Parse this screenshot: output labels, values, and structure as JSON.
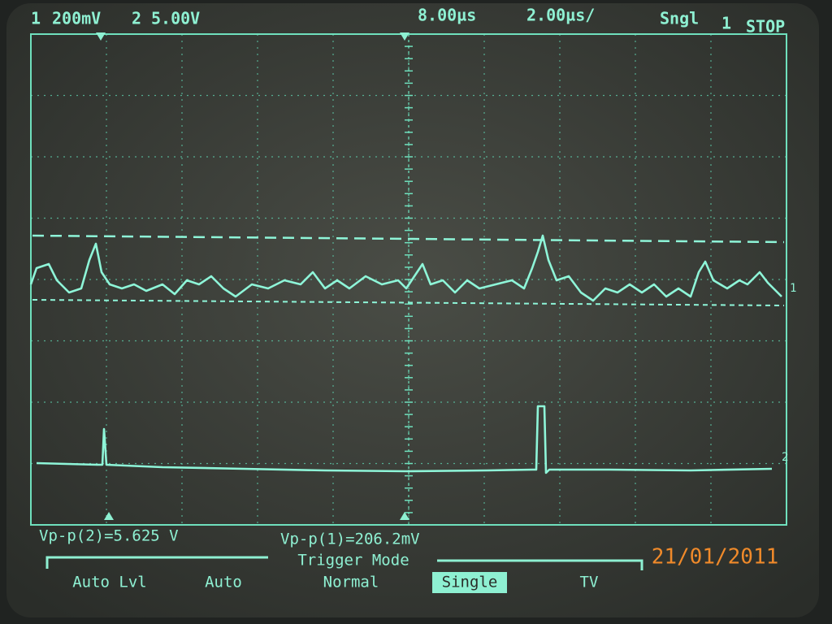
{
  "header": {
    "channel1": {
      "number": "1",
      "scale": "200mV"
    },
    "channel2": {
      "number": "2",
      "scale": "5.00V"
    },
    "trigger_position": "8.00µs",
    "timebase": "2.00µs/",
    "acquisition": "Sngl",
    "trigger_source": "1",
    "run_state": "STOP"
  },
  "markers": {
    "channel1": "1",
    "channel2": "2"
  },
  "measurements": [
    "Vp-p(2)=5.625 V",
    "Vp-p(1)=206.2mV"
  ],
  "menu": {
    "title": "Trigger Mode",
    "keys": [
      "Auto Lvl",
      "Auto",
      "Normal",
      "Single",
      "TV"
    ],
    "selected": 3
  },
  "date_stamp": "21/01/2011"
}
